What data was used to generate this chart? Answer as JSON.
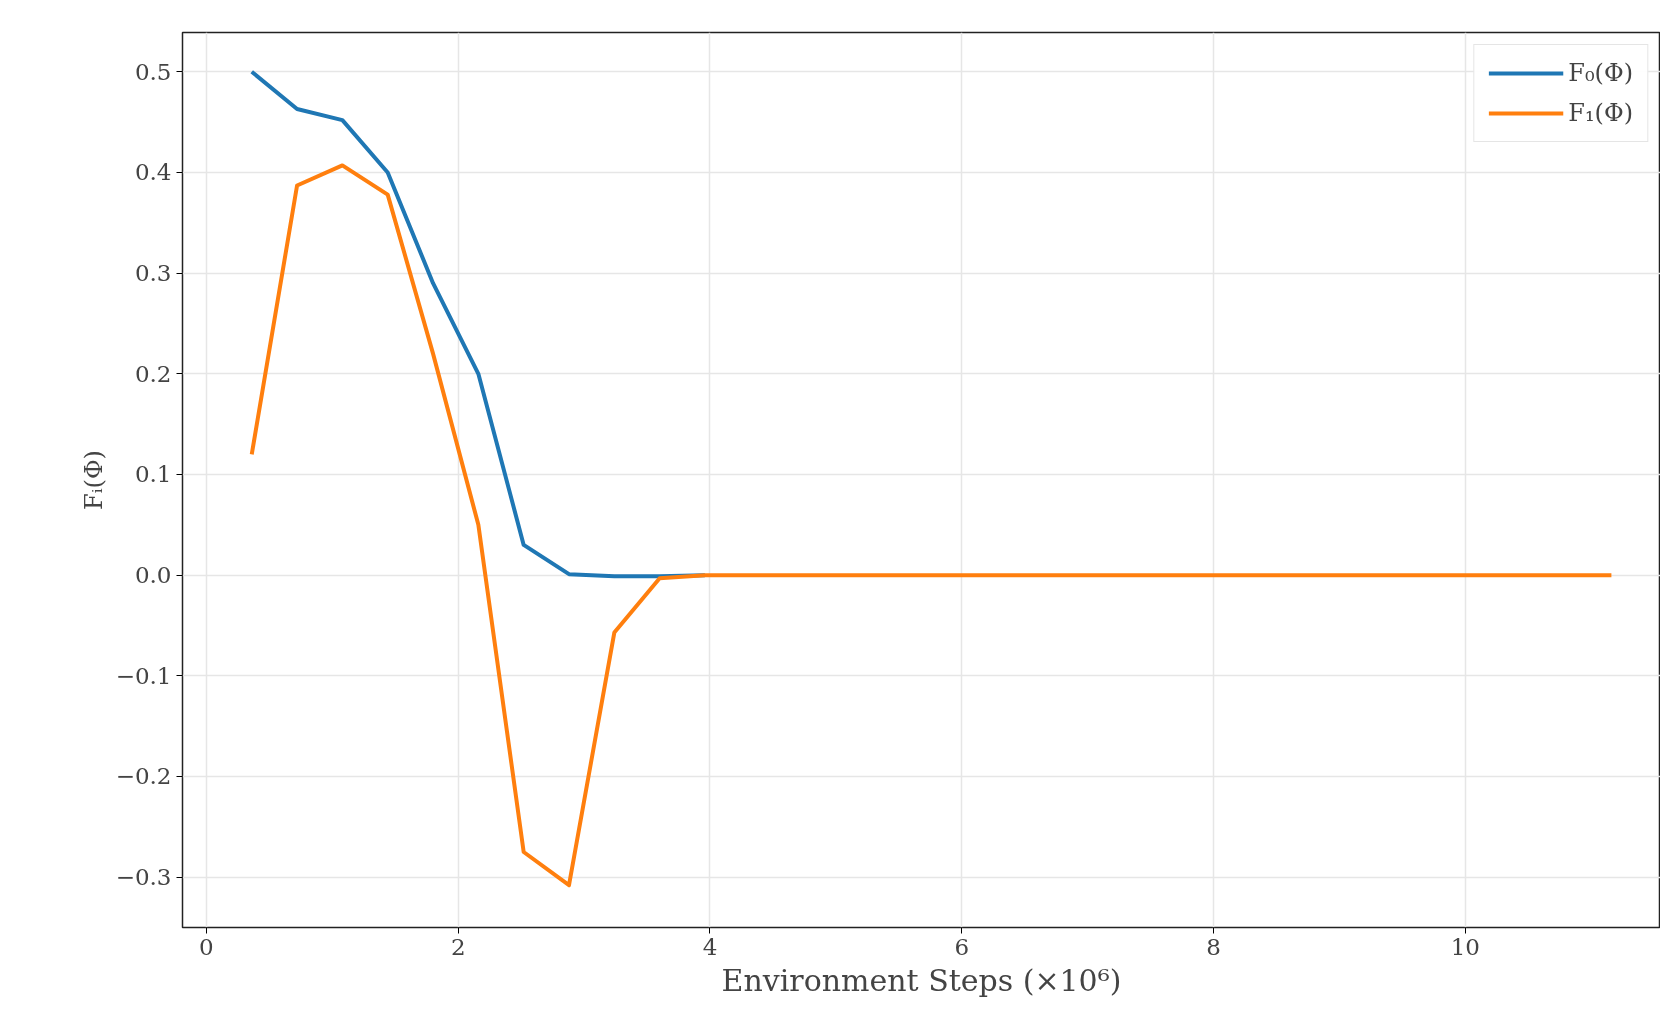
{
  "chart_data": {
    "type": "line",
    "xlabel": "Environment Steps (×10⁶)",
    "ylabel": "Fᵢ(Φ)",
    "x": [
      0.36,
      0.72,
      1.08,
      1.44,
      1.8,
      2.16,
      2.52,
      2.88,
      3.24,
      3.6,
      3.96,
      4.32,
      4.68,
      5.04,
      5.4,
      5.76,
      6.12,
      6.48,
      6.84,
      7.2,
      7.56,
      7.92,
      8.28,
      8.64,
      9.0,
      9.36,
      9.72,
      10.08,
      10.44,
      10.8,
      11.16
    ],
    "series": [
      {
        "name": "F₀(Φ)",
        "color": "#1f77b4",
        "values": [
          0.5,
          0.463,
          0.452,
          0.4,
          0.29,
          0.2,
          0.03,
          0.001,
          -0.001,
          -0.001,
          0,
          null,
          null,
          null,
          null,
          null,
          null,
          null,
          null,
          null,
          null,
          null,
          null,
          null,
          null,
          null,
          null,
          null,
          null,
          null,
          null
        ]
      },
      {
        "name": "F₁(Φ)",
        "color": "#ff7f0e",
        "values": [
          0.12,
          0.387,
          0.407,
          0.378,
          0.22,
          0.05,
          -0.275,
          -0.308,
          -0.057,
          -0.003,
          0,
          0,
          0,
          0,
          0,
          0,
          0,
          0,
          0,
          0,
          0,
          0,
          0,
          0,
          0,
          0,
          0,
          0,
          0,
          0,
          0
        ]
      }
    ],
    "xlim": [
      -0.19,
      11.55
    ],
    "ylim": [
      -0.35,
      0.539
    ],
    "xticks": [
      0,
      2,
      4,
      6,
      8,
      10
    ],
    "yticks": [
      {
        "value": -0.3,
        "label": "−0.3"
      },
      {
        "value": -0.2,
        "label": "−0.2"
      },
      {
        "value": -0.1,
        "label": "−0.1"
      },
      {
        "value": 0,
        "label": "0.0"
      },
      0.1,
      0.2,
      0.3,
      0.4,
      0.5
    ],
    "grid": true,
    "legend": "top right",
    "marker": "none",
    "line_style": "solid"
  }
}
